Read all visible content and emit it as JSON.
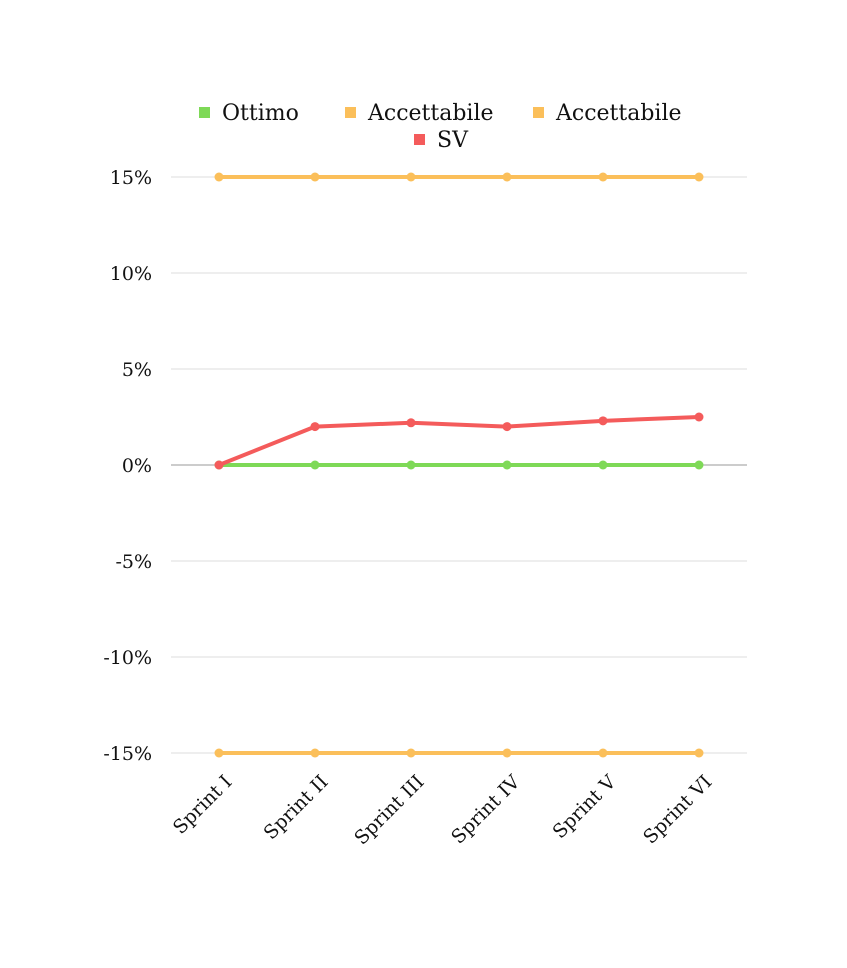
{
  "chart_data": {
    "type": "line",
    "categories": [
      "Sprint I",
      "Sprint II",
      "Sprint III",
      "Sprint IV",
      "Sprint V",
      "Sprint VI"
    ],
    "series": [
      {
        "name": "Ottimo",
        "color": "#7ed957",
        "values": [
          0,
          0,
          0,
          0,
          0,
          0
        ]
      },
      {
        "name": "Accettabile",
        "color": "#fbbf5a",
        "values": [
          15,
          15,
          15,
          15,
          15,
          15
        ]
      },
      {
        "name": "Accettabile",
        "color": "#fbbf5a",
        "values": [
          -15,
          -15,
          -15,
          -15,
          -15,
          -15
        ]
      },
      {
        "name": "SV",
        "color": "#f45b5b",
        "values": [
          0,
          2,
          2.2,
          2,
          2.3,
          2.5
        ]
      }
    ],
    "ylim": [
      -15,
      15
    ],
    "yticks": [
      15,
      10,
      5,
      0,
      -5,
      -10,
      -15
    ],
    "ytick_labels": [
      "15%",
      "10%",
      "5%",
      "0%",
      "-5%",
      "-10%",
      "-15%"
    ],
    "grid": true,
    "legend_position": "top",
    "title": "",
    "xlabel": "",
    "ylabel": ""
  }
}
